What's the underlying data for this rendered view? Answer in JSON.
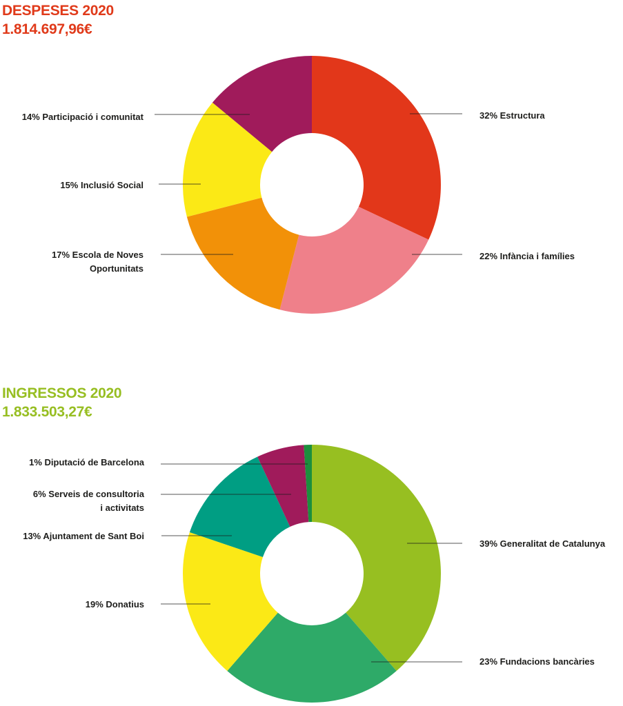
{
  "chart_data": [
    {
      "type": "pie",
      "title": "DESPESES 2020",
      "subtitle": "1.814.697,96€",
      "colors": {
        "title": "#e03a1a"
      },
      "slices": [
        {
          "value": 32,
          "label": [
            "32% Estructura"
          ],
          "color": "#e2371a"
        },
        {
          "value": 22,
          "label": [
            "22% Infància i famílies"
          ],
          "color": "#ef808a"
        },
        {
          "value": 17,
          "label": [
            "17% Escola de Noves",
            "Oportunitats"
          ],
          "color": "#f29108"
        },
        {
          "value": 15,
          "label": [
            "15% Inclusió Social"
          ],
          "color": "#fbe916"
        },
        {
          "value": 14,
          "label": [
            "14% Participació i comunitat"
          ],
          "color": "#a01b5b"
        }
      ]
    },
    {
      "type": "pie",
      "title": "INGRESSOS 2020",
      "subtitle": "1.833.503,27€",
      "colors": {
        "title": "#97be22"
      },
      "slices": [
        {
          "value": 39,
          "label": [
            "39% Generalitat de Catalunya"
          ],
          "color": "#97bf21"
        },
        {
          "value": 23,
          "label": [
            "23% Fundacions bancàries"
          ],
          "color": "#2eaa68"
        },
        {
          "value": 19,
          "label": [
            "19% Donatius"
          ],
          "color": "#fbe916"
        },
        {
          "value": 13,
          "label": [
            "13% Ajuntament de Sant Boi"
          ],
          "color": "#009e83"
        },
        {
          "value": 6,
          "label": [
            "6% Serveis de consultoria",
            "i activitats"
          ],
          "color": "#a01b5b"
        },
        {
          "value": 1,
          "label": [
            "1% Diputació de Barcelona"
          ],
          "color": "#1c8f3d"
        }
      ]
    }
  ]
}
